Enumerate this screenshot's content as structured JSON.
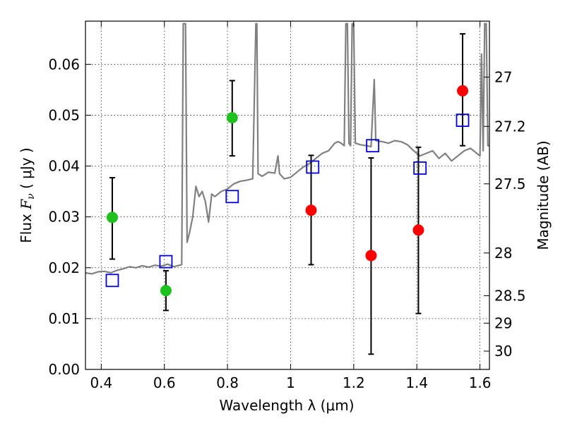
{
  "chart_data": {
    "type": "scatter",
    "xlabel": "Wavelength  λ (μm)",
    "ylabel": "Flux  F_ν  ( μJy )",
    "ylabel_right": "Magnitude (AB)",
    "xlim": [
      0.35,
      1.63
    ],
    "ylim": [
      0.0,
      0.0685
    ],
    "grid": true,
    "x_ticks": [
      0.4,
      0.6,
      0.8,
      1.0,
      1.2,
      1.4,
      1.6
    ],
    "x_tick_labels": [
      "0.4",
      "0.6",
      "0.8",
      "1",
      "1.2",
      "1.4",
      "1.6"
    ],
    "y_ticks": [
      0.0,
      0.01,
      0.02,
      0.03,
      0.04,
      0.05,
      0.06
    ],
    "y_tick_labels": [
      "0.00",
      "0.01",
      "0.02",
      "0.03",
      "0.04",
      "0.05",
      "0.06"
    ],
    "right_ticks": [
      {
        "label": "27",
        "flux": 0.0575
      },
      {
        "label": "27.2",
        "flux": 0.0478
      },
      {
        "label": "27.5",
        "flux": 0.0365
      },
      {
        "label": "28",
        "flux": 0.0229
      },
      {
        "label": "28.5",
        "flux": 0.0145
      },
      {
        "label": "29",
        "flux": 0.0091
      },
      {
        "label": "30",
        "flux": 0.0036
      }
    ],
    "series": [
      {
        "color": "#808080",
        "style": "line",
        "points": [
          [
            0.35,
            0.019
          ],
          [
            0.37,
            0.0188
          ],
          [
            0.39,
            0.0192
          ],
          [
            0.41,
            0.0193
          ],
          [
            0.43,
            0.019
          ],
          [
            0.45,
            0.0195
          ],
          [
            0.47,
            0.0198
          ],
          [
            0.49,
            0.0202
          ],
          [
            0.51,
            0.02
          ],
          [
            0.53,
            0.0204
          ],
          [
            0.55,
            0.0201
          ],
          [
            0.57,
            0.0205
          ],
          [
            0.59,
            0.0203
          ],
          [
            0.61,
            0.0207
          ],
          [
            0.63,
            0.0202
          ],
          [
            0.655,
            0.0206
          ],
          [
            0.66,
            0.068
          ],
          [
            0.667,
            0.068
          ],
          [
            0.672,
            0.025
          ],
          [
            0.68,
            0.027
          ],
          [
            0.69,
            0.03
          ],
          [
            0.7,
            0.036
          ],
          [
            0.71,
            0.034
          ],
          [
            0.72,
            0.035
          ],
          [
            0.73,
            0.033
          ],
          [
            0.74,
            0.029
          ],
          [
            0.75,
            0.0345
          ],
          [
            0.76,
            0.034
          ],
          [
            0.78,
            0.035
          ],
          [
            0.8,
            0.0355
          ],
          [
            0.82,
            0.0365
          ],
          [
            0.84,
            0.037
          ],
          [
            0.86,
            0.0372
          ],
          [
            0.88,
            0.0375
          ],
          [
            0.89,
            0.068
          ],
          [
            0.893,
            0.068
          ],
          [
            0.897,
            0.0385
          ],
          [
            0.91,
            0.038
          ],
          [
            0.93,
            0.0388
          ],
          [
            0.95,
            0.0386
          ],
          [
            0.96,
            0.042
          ],
          [
            0.965,
            0.0385
          ],
          [
            0.98,
            0.0375
          ],
          [
            1.0,
            0.0378
          ],
          [
            1.02,
            0.0388
          ],
          [
            1.04,
            0.0398
          ],
          [
            1.06,
            0.0405
          ],
          [
            1.08,
            0.0415
          ],
          [
            1.1,
            0.0425
          ],
          [
            1.12,
            0.043
          ],
          [
            1.14,
            0.0445
          ],
          [
            1.15,
            0.0448
          ],
          [
            1.16,
            0.0445
          ],
          [
            1.17,
            0.044
          ],
          [
            1.175,
            0.068
          ],
          [
            1.18,
            0.068
          ],
          [
            1.185,
            0.0445
          ],
          [
            1.19,
            0.044
          ],
          [
            1.195,
            0.068
          ],
          [
            1.2,
            0.068
          ],
          [
            1.205,
            0.0445
          ],
          [
            1.22,
            0.0442
          ],
          [
            1.24,
            0.044
          ],
          [
            1.255,
            0.0438
          ],
          [
            1.265,
            0.057
          ],
          [
            1.27,
            0.045
          ],
          [
            1.29,
            0.0448
          ],
          [
            1.31,
            0.0445
          ],
          [
            1.33,
            0.045
          ],
          [
            1.35,
            0.0448
          ],
          [
            1.37,
            0.0442
          ],
          [
            1.39,
            0.043
          ],
          [
            1.41,
            0.042
          ],
          [
            1.43,
            0.0425
          ],
          [
            1.45,
            0.043
          ],
          [
            1.47,
            0.0415
          ],
          [
            1.49,
            0.0425
          ],
          [
            1.51,
            0.041
          ],
          [
            1.53,
            0.042
          ],
          [
            1.55,
            0.043
          ],
          [
            1.57,
            0.0435
          ],
          [
            1.59,
            0.0425
          ],
          [
            1.6,
            0.042
          ],
          [
            1.605,
            0.062
          ],
          [
            1.61,
            0.043
          ],
          [
            1.615,
            0.068
          ],
          [
            1.62,
            0.068
          ],
          [
            1.625,
            0.044
          ],
          [
            1.63,
            0.044
          ]
        ]
      },
      {
        "color": "#1fc11f",
        "style": "circles",
        "points": [
          {
            "x": 0.435,
            "y": 0.0299,
            "err_lo": 0.0217,
            "err_hi": 0.0377
          },
          {
            "x": 0.605,
            "y": 0.0155,
            "err_lo": 0.0116,
            "err_hi": 0.0194
          },
          {
            "x": 0.815,
            "y": 0.0495,
            "err_lo": 0.042,
            "err_hi": 0.0568
          }
        ]
      },
      {
        "color": "#ff0000",
        "style": "circles",
        "points": [
          {
            "x": 1.065,
            "y": 0.0313,
            "err_lo": 0.0206,
            "err_hi": 0.0421
          },
          {
            "x": 1.255,
            "y": 0.0224,
            "err_lo": 0.003,
            "err_hi": 0.0416
          },
          {
            "x": 1.405,
            "y": 0.0274,
            "err_lo": 0.011,
            "err_hi": 0.0437
          },
          {
            "x": 1.545,
            "y": 0.0548,
            "err_lo": 0.044,
            "err_hi": 0.066
          }
        ]
      },
      {
        "color": "#0000dd",
        "style": "squares",
        "points": [
          {
            "x": 0.435,
            "y": 0.0175
          },
          {
            "x": 0.605,
            "y": 0.0212
          },
          {
            "x": 0.815,
            "y": 0.034
          },
          {
            "x": 1.07,
            "y": 0.0398
          },
          {
            "x": 1.26,
            "y": 0.044
          },
          {
            "x": 1.41,
            "y": 0.0396
          },
          {
            "x": 1.545,
            "y": 0.049
          }
        ]
      }
    ]
  }
}
